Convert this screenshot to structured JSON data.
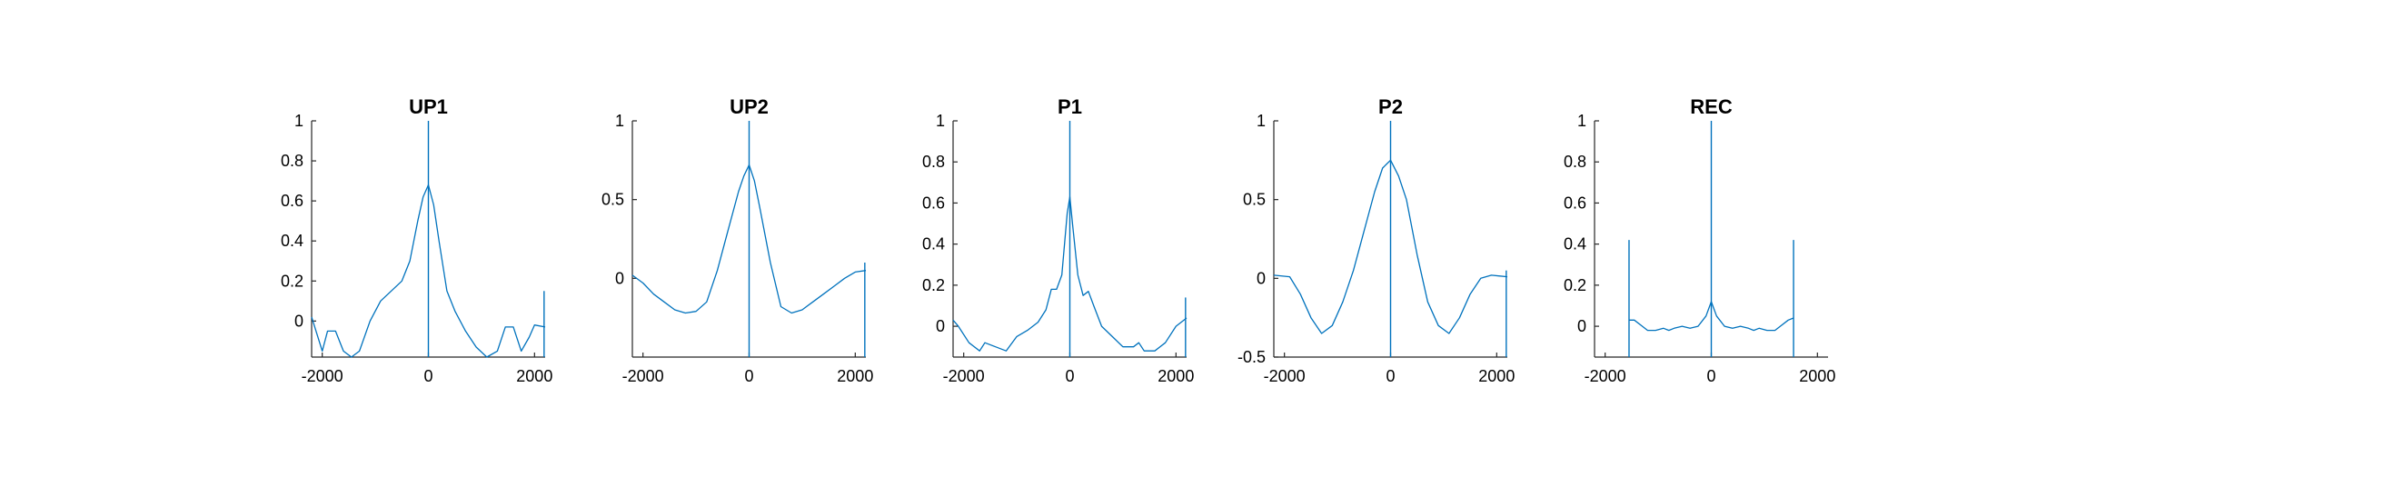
{
  "colors": {
    "series": "#0072BD",
    "axis": "#262626"
  },
  "chart_data": [
    {
      "type": "line",
      "title": "UP1",
      "xlim": [
        -2200,
        2200
      ],
      "ylim": [
        -0.18,
        1
      ],
      "xticks": [
        -2000,
        0,
        2000
      ],
      "xtick_labels": [
        "-2000",
        "0",
        "2000"
      ],
      "yticks": [
        0,
        0.2,
        0.4,
        0.6,
        0.8,
        1
      ],
      "ytick_labels": [
        "0",
        "0.2",
        "0.4",
        "0.6",
        "0.8",
        "1"
      ],
      "x": [
        -2200,
        -2000,
        -1900,
        -1750,
        -1600,
        -1450,
        -1300,
        -1100,
        -900,
        -700,
        -500,
        -350,
        -200,
        -100,
        0,
        100,
        200,
        350,
        500,
        700,
        900,
        1100,
        1300,
        1450,
        1600,
        1750,
        1900,
        2000,
        2200
      ],
      "y": [
        0.02,
        -0.15,
        -0.05,
        -0.05,
        -0.15,
        -0.2,
        -0.15,
        0.0,
        0.1,
        0.15,
        0.2,
        0.3,
        0.5,
        0.62,
        0.68,
        0.58,
        0.4,
        0.15,
        0.05,
        -0.05,
        -0.13,
        -0.2,
        -0.15,
        -0.03,
        -0.03,
        -0.15,
        -0.08,
        -0.02,
        -0.03
      ],
      "spikes": [
        {
          "x": 0,
          "y": 1
        },
        {
          "x": 2180,
          "y": 0.15
        }
      ]
    },
    {
      "type": "line",
      "title": "UP2",
      "xlim": [
        -2200,
        2200
      ],
      "ylim": [
        -0.5,
        1
      ],
      "xticks": [
        -2000,
        0,
        2000
      ],
      "xtick_labels": [
        "-2000",
        "0",
        "2000"
      ],
      "yticks": [
        0,
        0.5,
        1
      ],
      "ytick_labels": [
        "0",
        "0.5",
        "1"
      ],
      "x": [
        -2200,
        -2000,
        -1800,
        -1600,
        -1400,
        -1200,
        -1000,
        -800,
        -600,
        -400,
        -200,
        -100,
        0,
        100,
        200,
        400,
        600,
        800,
        1000,
        1200,
        1400,
        1600,
        1800,
        2000,
        2200
      ],
      "y": [
        0.02,
        -0.03,
        -0.1,
        -0.15,
        -0.2,
        -0.22,
        -0.21,
        -0.15,
        0.05,
        0.3,
        0.55,
        0.65,
        0.72,
        0.62,
        0.45,
        0.1,
        -0.18,
        -0.22,
        -0.2,
        -0.15,
        -0.1,
        -0.05,
        0.0,
        0.04,
        0.05
      ],
      "spikes": [
        {
          "x": 0,
          "y": 1
        },
        {
          "x": 2180,
          "y": 0.1
        }
      ]
    },
    {
      "type": "line",
      "title": "P1",
      "xlim": [
        -2200,
        2200
      ],
      "ylim": [
        -0.15,
        1
      ],
      "xticks": [
        -2000,
        0,
        2000
      ],
      "xtick_labels": [
        "-2000",
        "0",
        "2000"
      ],
      "yticks": [
        0,
        0.2,
        0.4,
        0.6,
        0.8,
        1
      ],
      "ytick_labels": [
        "0",
        "0.2",
        "0.4",
        "0.6",
        "0.8",
        "1"
      ],
      "x": [
        -2200,
        -2100,
        -1900,
        -1700,
        -1600,
        -1400,
        -1200,
        -1000,
        -800,
        -600,
        -450,
        -350,
        -250,
        -150,
        -50,
        0,
        50,
        150,
        250,
        350,
        450,
        600,
        800,
        1000,
        1200,
        1300,
        1400,
        1600,
        1800,
        2000,
        2200
      ],
      "y": [
        0.03,
        0.0,
        -0.08,
        -0.12,
        -0.08,
        -0.1,
        -0.12,
        -0.05,
        -0.02,
        0.02,
        0.08,
        0.18,
        0.18,
        0.25,
        0.55,
        0.63,
        0.5,
        0.25,
        0.15,
        0.17,
        0.1,
        0.0,
        -0.05,
        -0.1,
        -0.1,
        -0.08,
        -0.12,
        -0.12,
        -0.08,
        0.0,
        0.04
      ],
      "spikes": [
        {
          "x": 0,
          "y": 1
        },
        {
          "x": 2180,
          "y": 0.14
        }
      ]
    },
    {
      "type": "line",
      "title": "P2",
      "xlim": [
        -2200,
        2200
      ],
      "ylim": [
        -0.5,
        1
      ],
      "xticks": [
        -2000,
        0,
        2000
      ],
      "xtick_labels": [
        "-2000",
        "0",
        "2000"
      ],
      "yticks": [
        -0.5,
        0,
        0.5,
        1
      ],
      "ytick_labels": [
        "-0.5",
        "0",
        "0.5",
        "1"
      ],
      "x": [
        -2200,
        -1900,
        -1700,
        -1500,
        -1300,
        -1100,
        -900,
        -700,
        -500,
        -300,
        -150,
        0,
        150,
        300,
        500,
        700,
        900,
        1100,
        1300,
        1500,
        1700,
        1900,
        2200
      ],
      "y": [
        0.02,
        0.01,
        -0.1,
        -0.25,
        -0.35,
        -0.3,
        -0.15,
        0.05,
        0.3,
        0.55,
        0.7,
        0.75,
        0.65,
        0.5,
        0.15,
        -0.15,
        -0.3,
        -0.35,
        -0.25,
        -0.1,
        0.0,
        0.02,
        0.01
      ],
      "spikes": [
        {
          "x": 0,
          "y": 1
        },
        {
          "x": 2180,
          "y": 0.05
        }
      ]
    },
    {
      "type": "line",
      "title": "REC",
      "xlim": [
        -2200,
        2200
      ],
      "ylim": [
        -0.15,
        1
      ],
      "xticks": [
        -2000,
        0,
        2000
      ],
      "xtick_labels": [
        "-2000",
        "0",
        "2000"
      ],
      "yticks": [
        0,
        0.2,
        0.4,
        0.6,
        0.8,
        1
      ],
      "ytick_labels": [
        "0",
        "0.2",
        "0.4",
        "0.6",
        "0.8",
        "1"
      ],
      "x": [
        -1550,
        -1450,
        -1300,
        -1200,
        -1050,
        -900,
        -800,
        -700,
        -550,
        -400,
        -250,
        -100,
        0,
        100,
        250,
        400,
        550,
        700,
        800,
        900,
        1050,
        1200,
        1300,
        1450,
        1550
      ],
      "y": [
        0.03,
        0.03,
        0.0,
        -0.02,
        -0.02,
        -0.01,
        -0.02,
        -0.01,
        0.0,
        -0.01,
        0.0,
        0.05,
        0.12,
        0.05,
        0.0,
        -0.01,
        0.0,
        -0.01,
        -0.02,
        -0.01,
        -0.02,
        -0.02,
        0.0,
        0.03,
        0.04
      ],
      "spikes": [
        {
          "x": 0,
          "y": 1
        },
        {
          "x": -1550,
          "y": 0.42
        },
        {
          "x": 1550,
          "y": 0.42
        }
      ]
    }
  ]
}
